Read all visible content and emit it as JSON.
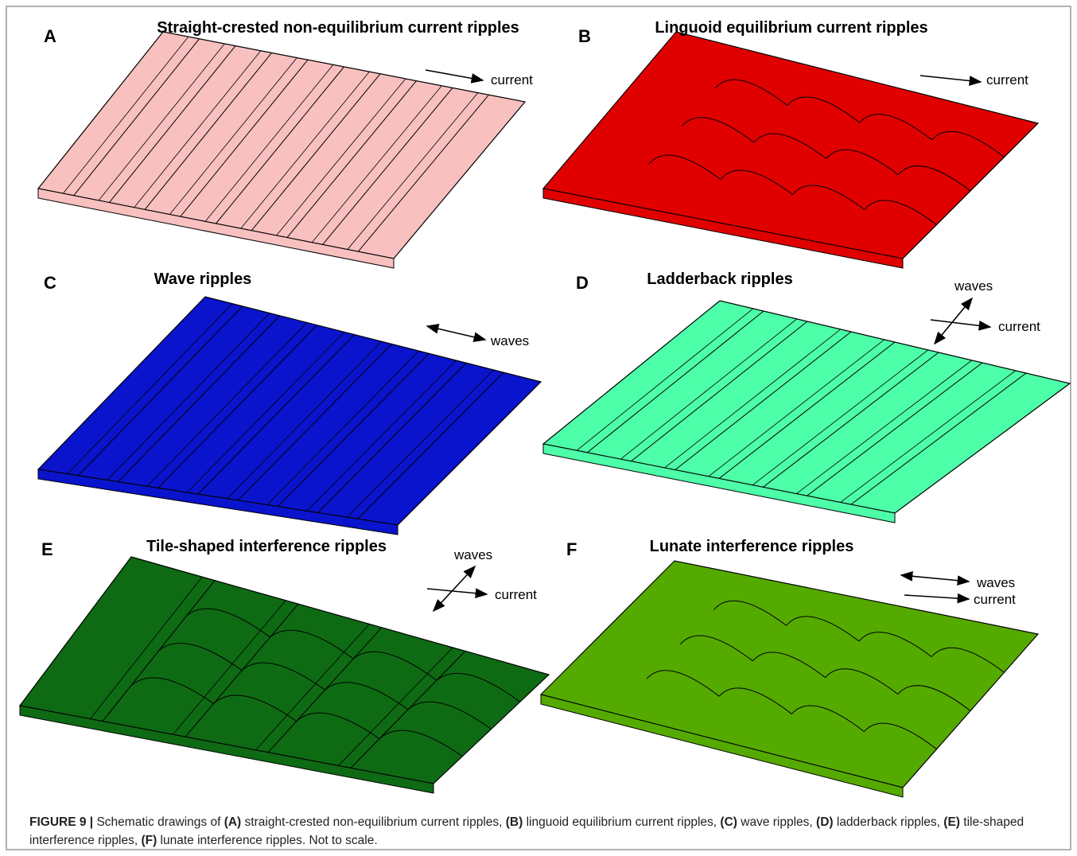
{
  "panels": [
    {
      "letter": "A",
      "title": "Straight-crested non-equilibrium current ripples",
      "labels": [
        "current"
      ]
    },
    {
      "letter": "B",
      "title": "Linguoid equilibrium current ripples",
      "labels": [
        "current"
      ]
    },
    {
      "letter": "C",
      "title": "Wave ripples",
      "labels": [
        "waves"
      ]
    },
    {
      "letter": "D",
      "title": "Ladderback ripples",
      "labels": [
        "waves",
        "current"
      ]
    },
    {
      "letter": "E",
      "title": "Tile-shaped interference ripples",
      "labels": [
        "waves",
        "current"
      ]
    },
    {
      "letter": "F",
      "title": "Lunate interference ripples",
      "labels": [
        "waves",
        "current"
      ]
    }
  ],
  "caption": {
    "label": "FIGURE 9 |",
    "parts": [
      "Schematic drawings of ",
      "(A)",
      " straight-crested non-equilibrium current ripples, ",
      "(B)",
      " linguoid equilibrium current ripples, ",
      "(C)",
      " wave ripples, ",
      "(D)",
      " ladderback ripples, ",
      "(E)",
      " tile-shaped interference ripples, ",
      "(F)",
      " lunate interference ripples. Not to scale."
    ]
  }
}
